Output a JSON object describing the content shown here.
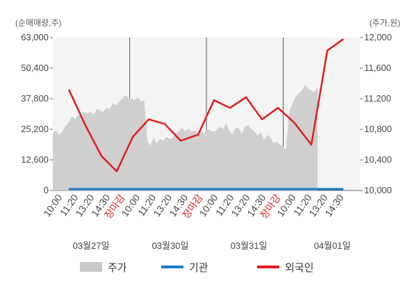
{
  "chart_data": {
    "type": "line",
    "left_axis_unit": "(순매매량,주)",
    "right_axis_unit": "(주가,원)",
    "left_ticks": [
      "63,000",
      "50,400",
      "37,800",
      "25,200",
      "12,600",
      "0"
    ],
    "left_tick_values": [
      63000,
      50400,
      37800,
      25200,
      12600,
      0
    ],
    "right_ticks": [
      "12,000",
      "11,600",
      "11,200",
      "10,800",
      "10,400",
      "10,000"
    ],
    "right_tick_values": [
      12000,
      11600,
      11200,
      10800,
      10400,
      10000
    ],
    "left_range": [
      0,
      63000
    ],
    "right_range": [
      10000,
      12000
    ],
    "days": [
      "03월27일",
      "03월30일",
      "03월31일",
      "04월01일"
    ],
    "x_tick_groups": [
      [
        "10:00",
        "11:20",
        "13:20",
        "14:30",
        "장마감"
      ],
      [
        "10:00",
        "11:20",
        "13:20",
        "14:30",
        "장마감"
      ],
      [
        "10:00",
        "11:20",
        "13:20",
        "14:30",
        "장마감"
      ],
      [
        "10:00",
        "11:20",
        "13:20",
        "14:30"
      ]
    ],
    "close_label": "장마감",
    "legend": [
      {
        "label": "주가",
        "kind": "area",
        "color": "#c8c8c8"
      },
      {
        "label": "기관",
        "kind": "line",
        "color": "#1a7bc4"
      },
      {
        "label": "외국인",
        "kind": "line",
        "color": "#e31b1b"
      }
    ],
    "series": {
      "price_shares_scale": [
        23500,
        24800,
        22800,
        24200,
        26500,
        28000,
        30500,
        29400,
        31200,
        30800,
        32500,
        31700,
        32400,
        31300,
        33600,
        32800,
        32400,
        34200,
        33500,
        35800,
        35100,
        36500,
        37900,
        39200,
        38300,
        37800,
        37200,
        38400,
        36600,
        37000,
        20200,
        18500,
        21800,
        19400,
        21300,
        20600,
        22100,
        21200,
        21700,
        23500,
        24500,
        25800,
        24400,
        25500,
        24200,
        24900,
        23700,
        24800,
        23600,
        25300,
        24800,
        24200,
        24900,
        26200,
        25300,
        27900,
        24500,
        23100,
        25800,
        25600,
        23300,
        26500,
        26900,
        25300,
        24100,
        22600,
        23900,
        20700,
        22900,
        21800,
        19500,
        20100,
        19000,
        18200,
        16500,
        32500,
        35800,
        38600,
        39800,
        41200,
        43500,
        42000,
        41200,
        40500,
        42800
      ],
      "institution": [
        0,
        0,
        0,
        0,
        0,
        0,
        0,
        0,
        0,
        0,
        0,
        0,
        0
      ],
      "foreign_won_scale": [
        11320,
        10850,
        10450,
        10250,
        10700,
        10930,
        10870,
        10650,
        10730,
        11180,
        11080,
        11220,
        10930,
        11080,
        10890,
        10600,
        11830,
        11980
      ]
    },
    "grid": true
  }
}
